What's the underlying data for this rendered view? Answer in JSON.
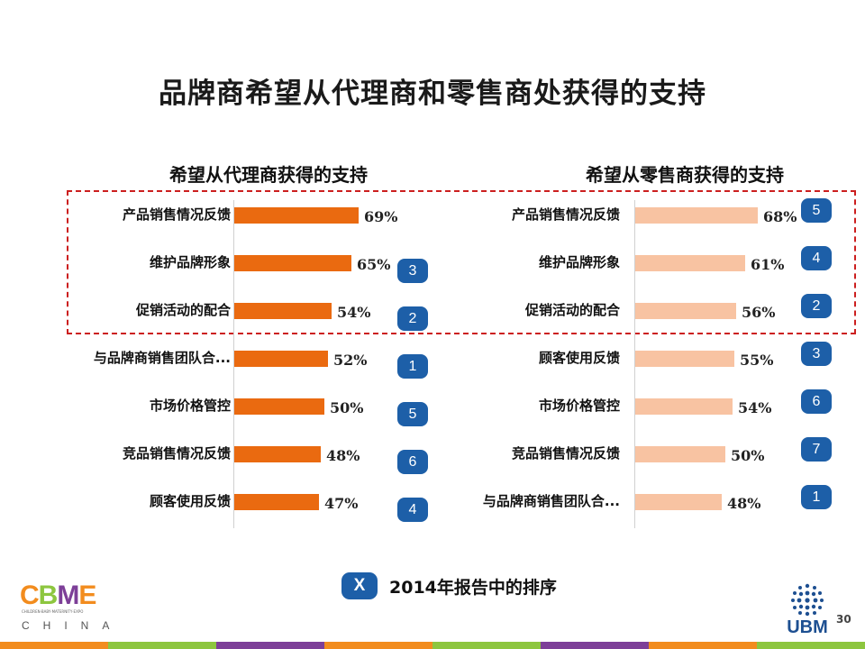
{
  "title": "品牌商希望从代理商和零售商处获得的支持",
  "colors": {
    "left_bar": "#ea6a10",
    "right_bar": "#f8c3a2",
    "badge": "#1d5fa8",
    "highlight_border": "#cc1f1f"
  },
  "chart_data": [
    {
      "type": "bar",
      "orientation": "horizontal",
      "title": "希望从代理商获得的支持",
      "categories": [
        "产品销售情况反馈",
        "维护品牌形象",
        "促销活动的配合",
        "与品牌商销售团队合...",
        "市场价格管控",
        "竞品销售情况反馈",
        "顾客使用反馈"
      ],
      "values": [
        69,
        65,
        54,
        52,
        50,
        48,
        47
      ],
      "value_labels": [
        "69%",
        "65%",
        "54%",
        "52%",
        "50%",
        "48%",
        "47%"
      ],
      "rank_2014": [
        "",
        "3",
        "2",
        "1",
        "5",
        "6",
        "4"
      ],
      "xlim": [
        0,
        100
      ]
    },
    {
      "type": "bar",
      "orientation": "horizontal",
      "title": "希望从零售商获得的支持",
      "categories": [
        "产品销售情况反馈",
        "维护品牌形象",
        "促销活动的配合",
        "顾客使用反馈",
        "市场价格管控",
        "竞品销售情况反馈",
        "与品牌商销售团队合..."
      ],
      "values": [
        68,
        61,
        56,
        55,
        54,
        50,
        48
      ],
      "value_labels": [
        "68%",
        "61%",
        "56%",
        "55%",
        "54%",
        "50%",
        "48%"
      ],
      "rank_2014": [
        "5",
        "4",
        "2",
        "3",
        "6",
        "7",
        "1"
      ],
      "xlim": [
        0,
        100
      ]
    }
  ],
  "legend": {
    "badge_label": "X",
    "text": "2014年报告中的排序"
  },
  "footer": {
    "page_number": "30",
    "ubm_logo": "UBM",
    "cbme_logo": "CBME",
    "cbme_subtitle": "CHILDREN·BABY·MATERNITY·EXPO",
    "cbme_china": "CHINA",
    "stripe_colors": [
      "#f28c1e",
      "#8dc63f",
      "#7d3f98",
      "#f28c1e",
      "#8dc63f",
      "#7d3f98",
      "#f28c1e",
      "#8dc63f"
    ]
  }
}
